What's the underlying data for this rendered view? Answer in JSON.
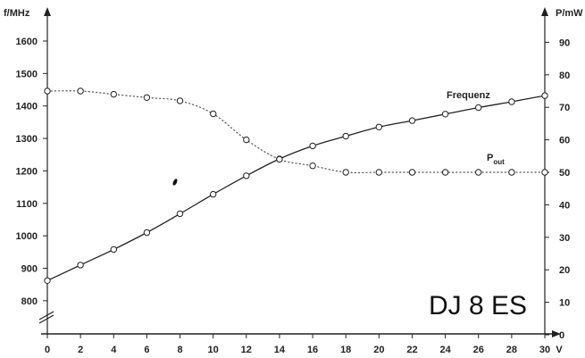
{
  "chart_data": {
    "type": "line",
    "x": [
      0,
      2,
      4,
      6,
      8,
      10,
      12,
      14,
      16,
      18,
      20,
      22,
      24,
      26,
      28,
      30
    ],
    "xlabel": "V",
    "xlim": [
      0,
      30
    ],
    "y_left_label": "f/MHz",
    "y_left_ticks": [
      800,
      900,
      1000,
      1100,
      1200,
      1300,
      1400,
      1500,
      1600
    ],
    "y_right_label": "P/mW",
    "y_right_ticks": [
      0,
      10,
      20,
      30,
      40,
      50,
      60,
      70,
      80,
      90
    ],
    "series": [
      {
        "name": "Frequenz",
        "axis": "left",
        "style": "solid",
        "values": [
          862,
          910,
          958,
          1010,
          1068,
          1128,
          1185,
          1237,
          1277,
          1307,
          1335,
          1355,
          1375,
          1395,
          1413,
          1432
        ]
      },
      {
        "name": "P",
        "name_subscript": "out",
        "axis": "right",
        "style": "dotted",
        "values": [
          75,
          75,
          74,
          73,
          72,
          68,
          60,
          54,
          52,
          50,
          50,
          50,
          50,
          50,
          50,
          50
        ]
      }
    ],
    "annotations": [
      "DJ 8 ES"
    ],
    "grid": false
  }
}
